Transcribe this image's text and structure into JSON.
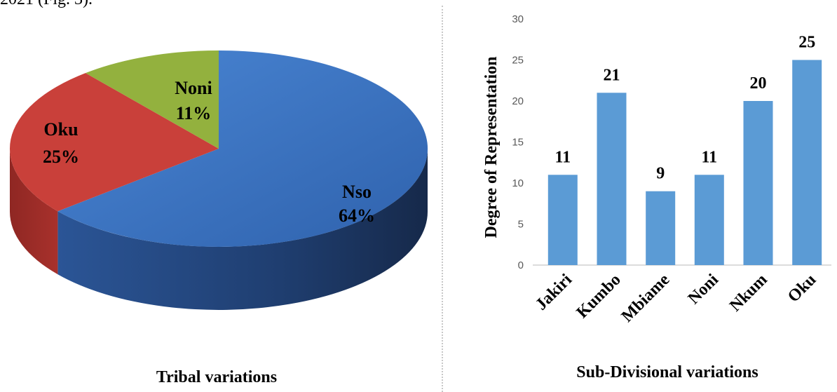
{
  "page": {
    "top_text": "2021 (Fig. 3)."
  },
  "chart_data": [
    {
      "type": "pie",
      "title": "Tribal variations",
      "slices": [
        {
          "name": "Nso",
          "value": 64,
          "label": "64%",
          "color": "#3a6fbf"
        },
        {
          "name": "Oku",
          "value": 25,
          "label": "25%",
          "color": "#c9403a"
        },
        {
          "name": "Noni",
          "value": 11,
          "label": "11%",
          "color": "#93b13e"
        }
      ]
    },
    {
      "type": "bar",
      "title": "",
      "xlabel": "Sub-Divisional variations",
      "ylabel": "Degree of Representation",
      "categories": [
        "Jakiri",
        "Kumbo",
        "Mbiame",
        "Noni",
        "Nkum",
        "Oku"
      ],
      "values": [
        11,
        21,
        9,
        11,
        20,
        25
      ],
      "ylim": [
        0,
        30
      ],
      "yticks": [
        0,
        5,
        10,
        15,
        20,
        25,
        30
      ],
      "bar_color": "#5b9bd5",
      "grid": false
    }
  ]
}
